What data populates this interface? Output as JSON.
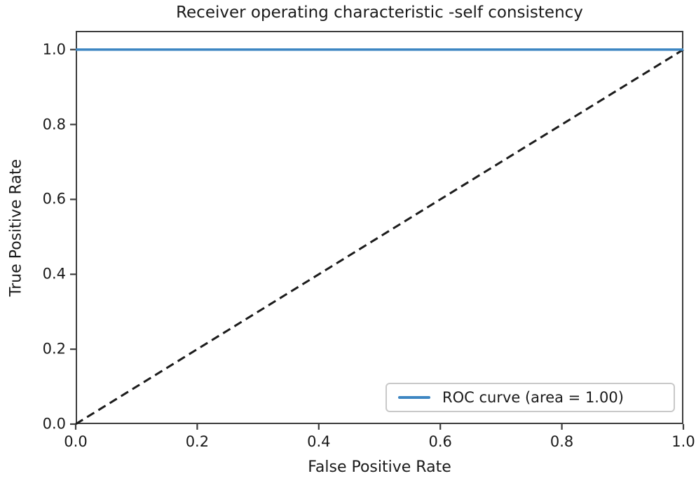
{
  "chart_data": {
    "type": "line",
    "title": "Receiver operating characteristic -self consistency",
    "xlabel": "False Positive Rate",
    "ylabel": "True Positive Rate",
    "xlim": [
      0.0,
      1.0
    ],
    "ylim": [
      0.0,
      1.05
    ],
    "x_ticks": [
      "0.0",
      "0.2",
      "0.4",
      "0.6",
      "0.8",
      "1.0"
    ],
    "x_tick_values": [
      0.0,
      0.2,
      0.4,
      0.6,
      0.8,
      1.0
    ],
    "y_ticks": [
      "0.0",
      "0.2",
      "0.4",
      "0.6",
      "0.8",
      "1.0"
    ],
    "y_tick_values": [
      0.0,
      0.2,
      0.4,
      0.6,
      0.8,
      1.0
    ],
    "grid": false,
    "legend_position": "lower right",
    "legend_entries": [
      "ROC curve (area = 1.00)"
    ],
    "series": [
      {
        "name": "chance-diagonal",
        "style": "dashed",
        "color": "#1c1c1c",
        "width": 3,
        "x": [
          0.0,
          1.0
        ],
        "y": [
          0.0,
          1.0
        ]
      },
      {
        "name": "roc-curve",
        "label": "ROC curve (area = 1.00)",
        "style": "solid",
        "color": "#3d86c2",
        "width": 3.5,
        "x": [
          0.0,
          1.0
        ],
        "y": [
          1.0,
          1.0
        ]
      }
    ]
  },
  "colors": {
    "axis": "#3c3c3c",
    "text": "#1a1a1a",
    "roc_line": "#3d86c2",
    "diagonal": "#1c1c1c",
    "legend_border": "#c9c9c9",
    "background": "#ffffff"
  }
}
